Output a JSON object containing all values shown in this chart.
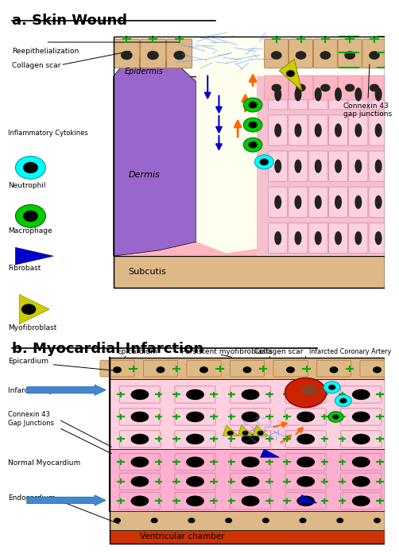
{
  "title_a": "a. Skin Wound",
  "title_b": "b. Myocardial Infarction",
  "colors": {
    "epidermis_purple": "#9966CC",
    "dermis_pink": "#FFB6C1",
    "subcutis_tan": "#DEB887",
    "neutrophil_cyan": "#00FFFF",
    "macrophage_green": "#00CC00",
    "fibrobast_blue": "#0000CC",
    "myofibrobast_yellow": "#CCCC00",
    "collagen_blue": "#4488FF",
    "orange_arrow": "#FF6600",
    "gap_green": "#00AA00",
    "myocardium_pink": "#FFB0D0",
    "ventricular_red": "#CC3300",
    "endocardium_tan": "#DEB887",
    "infarct_red": "#CC2200",
    "blue_arrow": "#4488CC"
  },
  "skin_labels": {
    "reepith": "Reepithelialization",
    "collagen": "Collagen scar",
    "epidermis": "Epidermis",
    "dermis": "Dermis",
    "subcutis": "Subcutis",
    "inflamm": "Inflammatory Cytokines",
    "neutrophil": "Neutrophil",
    "macrophage": "Macrophage",
    "fibrobast": "Fibrobast",
    "myofibrobast": "Myofibroblast",
    "connexin": "Connexin 43\ngap junctions"
  },
  "heart_labels": {
    "epicardium": "Epicardium",
    "persistent": "Persistent myofibroblasts",
    "collagen": "Collagen scar",
    "infarcted_artery": "Infarcted Coronary Artery",
    "infarcted_myo": "Infarcted Myocardium",
    "connexin": "Connexin 43\nGap Junctions",
    "normal_myo": "Normal Myocardium",
    "endocardium": "Endocardium",
    "ventricular": "Ventricular chamber"
  }
}
